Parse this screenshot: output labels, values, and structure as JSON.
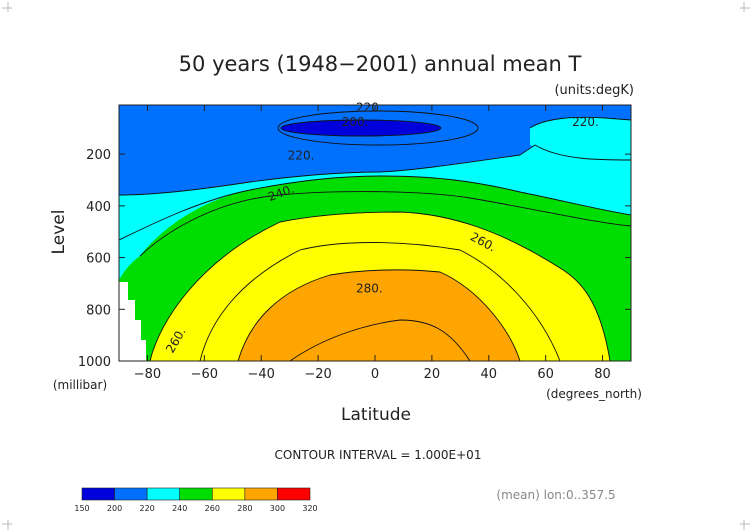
{
  "chart_data": {
    "type": "contour",
    "title": "50 years (1948−2001) annual mean T",
    "units": "(units:degK)",
    "xlabel": "Latitude",
    "xunit": "(degrees_north)",
    "ylabel": "Level",
    "yunit": "(millibar)",
    "xlim": [
      -90,
      90
    ],
    "ylim": [
      1000,
      10
    ],
    "xticks": [
      -80,
      -60,
      -40,
      -20,
      0,
      20,
      40,
      60,
      80
    ],
    "yticks": [
      200,
      400,
      600,
      800,
      1000
    ],
    "contour_interval_text": "CONTOUR INTERVAL = 1.000E+01",
    "contour_labels": [
      {
        "text": "220.",
        "x": -2,
        "y": 20
      },
      {
        "text": "200.",
        "x": -7,
        "y": 75
      },
      {
        "text": "220.",
        "x": 74,
        "y": 75
      },
      {
        "text": "220.",
        "x": -26,
        "y": 205
      },
      {
        "text": "240.",
        "x": -33,
        "y": 350
      },
      {
        "text": "260.",
        "x": 38,
        "y": 540
      },
      {
        "text": "280.",
        "x": -2,
        "y": 720
      },
      {
        "text": "260.",
        "x": -70,
        "y": 920
      }
    ],
    "bands": [
      {
        "range": "150-200",
        "color": "#0000dd"
      },
      {
        "range": "200-220",
        "color": "#0070ff"
      },
      {
        "range": "220-240",
        "color": "#00ffff"
      },
      {
        "range": "240-260",
        "color": "#00dd00"
      },
      {
        "range": "260-280",
        "color": "#ffff00"
      },
      {
        "range": "280-300",
        "color": "#ffa500"
      },
      {
        "range": "300-320",
        "color": "#ff0000"
      }
    ],
    "colorbar_ticks": [
      "150",
      "200",
      "220",
      "240",
      "260",
      "280",
      "300",
      "320"
    ],
    "footnote": "(mean) lon:0..357.5"
  }
}
